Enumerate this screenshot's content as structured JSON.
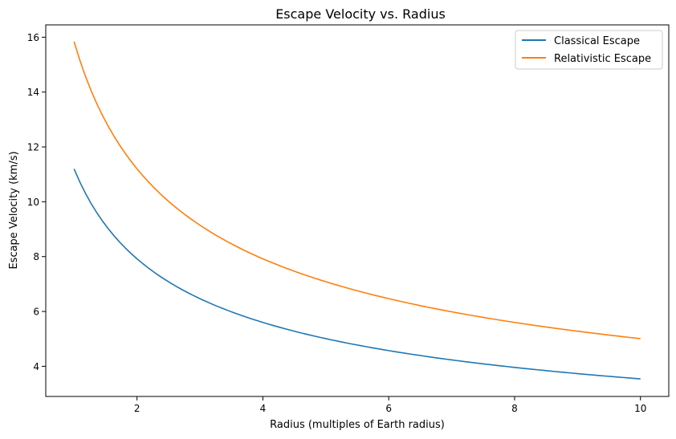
{
  "chart_data": {
    "type": "line",
    "title": "Escape Velocity vs. Radius",
    "xlabel": "Radius (multiples of Earth radius)",
    "ylabel": "Escape Velocity (km/s)",
    "xlim": [
      0.55,
      10.45
    ],
    "ylim": [
      2.9,
      16.45
    ],
    "xticks": [
      2,
      4,
      6,
      8,
      10
    ],
    "yticks": [
      4,
      6,
      8,
      10,
      12,
      14,
      16
    ],
    "grid": false,
    "legend_position": "top-right",
    "x_range": [
      1,
      10
    ],
    "formula": "v = v0 / sqrt(r)",
    "series": [
      {
        "name": "Classical Escape",
        "color": "#1f77b4",
        "v0": 11.2
      },
      {
        "name": "Relativistic Escape",
        "color": "#ff7f0e",
        "v0": 15.84
      }
    ]
  }
}
